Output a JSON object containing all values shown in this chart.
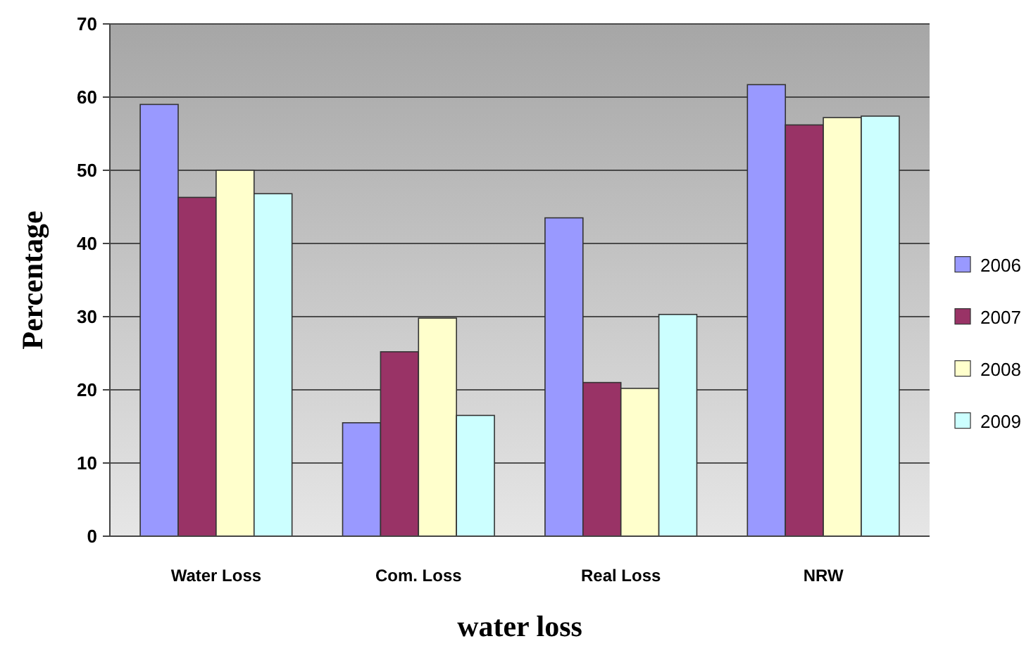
{
  "chart_data": {
    "type": "bar",
    "xlabel": "water loss",
    "ylabel": "Percentage",
    "categories": [
      "Water Loss",
      "Com. Loss",
      "Real Loss",
      "NRW"
    ],
    "series": [
      {
        "name": "2006",
        "color": "#9999ff",
        "values": [
          59,
          15.5,
          43.5,
          61.7
        ]
      },
      {
        "name": "2007",
        "color": "#993366",
        "values": [
          46.3,
          25.2,
          21,
          56.2
        ]
      },
      {
        "name": "2008",
        "color": "#ffffcc",
        "values": [
          50,
          29.8,
          20.2,
          57.2
        ]
      },
      {
        "name": "2009",
        "color": "#ccffff",
        "values": [
          46.8,
          16.5,
          30.3,
          57.4
        ]
      }
    ],
    "ylim": [
      0,
      70
    ],
    "yticks": [
      0,
      10,
      20,
      30,
      40,
      50,
      60,
      70
    ],
    "grid": "y",
    "legend": "right"
  }
}
